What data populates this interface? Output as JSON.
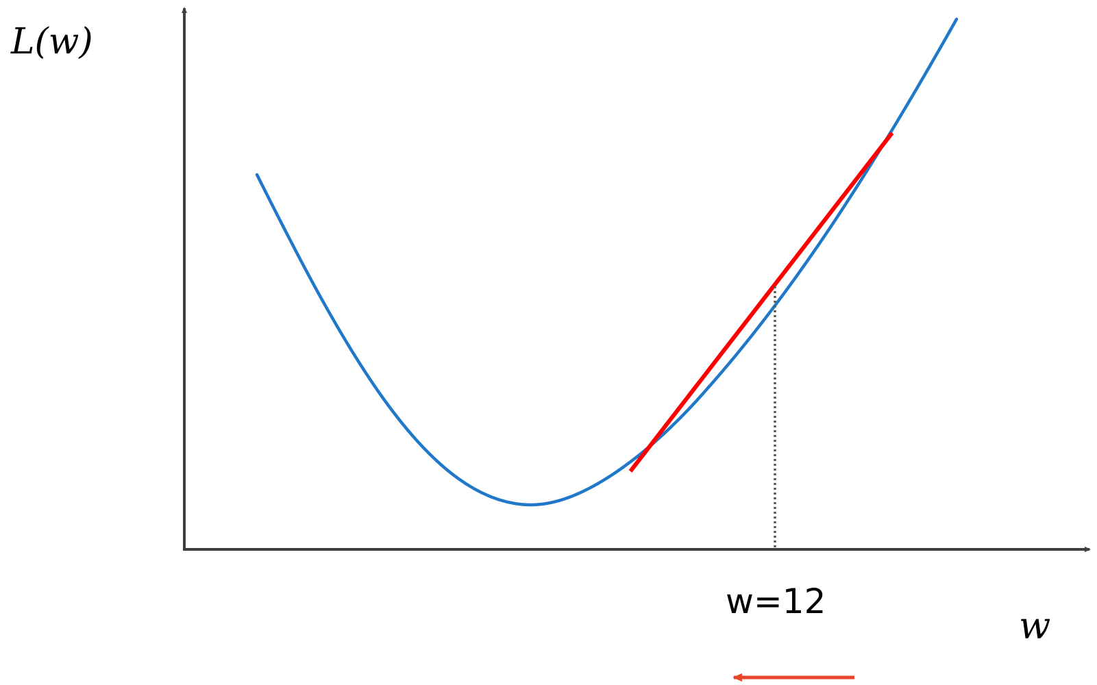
{
  "diagram": {
    "y_axis_label": "L(w)",
    "x_axis_label": "w",
    "point_label": "w=12",
    "colors": {
      "axis": "#404040",
      "curve": "#1f78c8",
      "tangent": "#ff0000",
      "guide": "#595959",
      "arrow": "#e8462a"
    }
  }
}
